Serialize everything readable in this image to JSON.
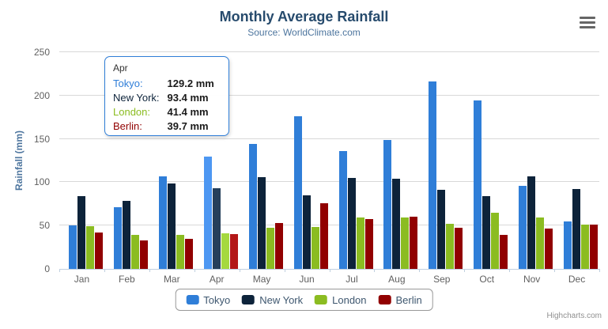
{
  "header": {
    "title": "Monthly Average Rainfall",
    "subtitle": "Source: WorldClimate.com"
  },
  "colors": {
    "grid": "#d8d8d8",
    "axis_line": "#c0d0e0",
    "title_text": "#274b6d",
    "subtitle_text": "#4d759e",
    "axis_label_text": "#606060"
  },
  "chart_data": {
    "type": "bar",
    "title": "Monthly Average Rainfall",
    "subtitle": "Source: WorldClimate.com",
    "categories": [
      "Jan",
      "Feb",
      "Mar",
      "Apr",
      "May",
      "Jun",
      "Jul",
      "Aug",
      "Sep",
      "Oct",
      "Nov",
      "Dec"
    ],
    "series": [
      {
        "name": "Tokyo",
        "color": "#2f7ed8",
        "hover_color": "#4d97f2",
        "values": [
          49.9,
          71.5,
          106.4,
          129.2,
          144.0,
          176.0,
          135.6,
          148.5,
          216.4,
          194.1,
          95.6,
          54.4
        ]
      },
      {
        "name": "New York",
        "color": "#0d233a",
        "hover_color": "#26405b",
        "values": [
          83.6,
          78.8,
          98.5,
          93.4,
          106.0,
          84.5,
          105.0,
          104.3,
          91.2,
          83.5,
          106.6,
          92.3
        ]
      },
      {
        "name": "London",
        "color": "#8bbc21",
        "hover_color": "#a5d93e",
        "values": [
          48.9,
          38.8,
          39.3,
          41.4,
          47.0,
          48.3,
          59.0,
          59.6,
          52.4,
          65.2,
          59.3,
          51.2
        ]
      },
      {
        "name": "Berlin",
        "color": "#910000",
        "hover_color": "#b31717",
        "values": [
          42.4,
          33.2,
          34.5,
          39.7,
          52.6,
          75.5,
          57.4,
          60.4,
          47.6,
          39.1,
          46.8,
          51.1
        ]
      }
    ],
    "xlabel": "",
    "ylabel": "Rainfall (mm)",
    "ylim": [
      0,
      250
    ],
    "yticks": [
      0,
      50,
      100,
      150,
      200,
      250
    ],
    "grid": true,
    "legend_position": "bottom",
    "hovered_category": "Apr",
    "hovered_index": 3
  },
  "y_axis": {
    "title": "Rainfall (mm)"
  },
  "tooltip": {
    "header": "Apr",
    "rows": [
      {
        "name": "Tokyo:",
        "value": "129.2 mm",
        "color": "#2f7ed8"
      },
      {
        "name": "New York:",
        "value": "93.4 mm",
        "color": "#0d233a"
      },
      {
        "name": "London:",
        "value": "41.4 mm",
        "color": "#8bbc21"
      },
      {
        "name": "Berlin:",
        "value": "39.7 mm",
        "color": "#910000"
      }
    ]
  },
  "legend": {
    "items": [
      {
        "label": "Tokyo",
        "color": "#2f7ed8"
      },
      {
        "label": "New York",
        "color": "#0d233a"
      },
      {
        "label": "London",
        "color": "#8bbc21"
      },
      {
        "label": "Berlin",
        "color": "#910000"
      }
    ]
  },
  "credits": {
    "label": "Highcharts.com"
  }
}
